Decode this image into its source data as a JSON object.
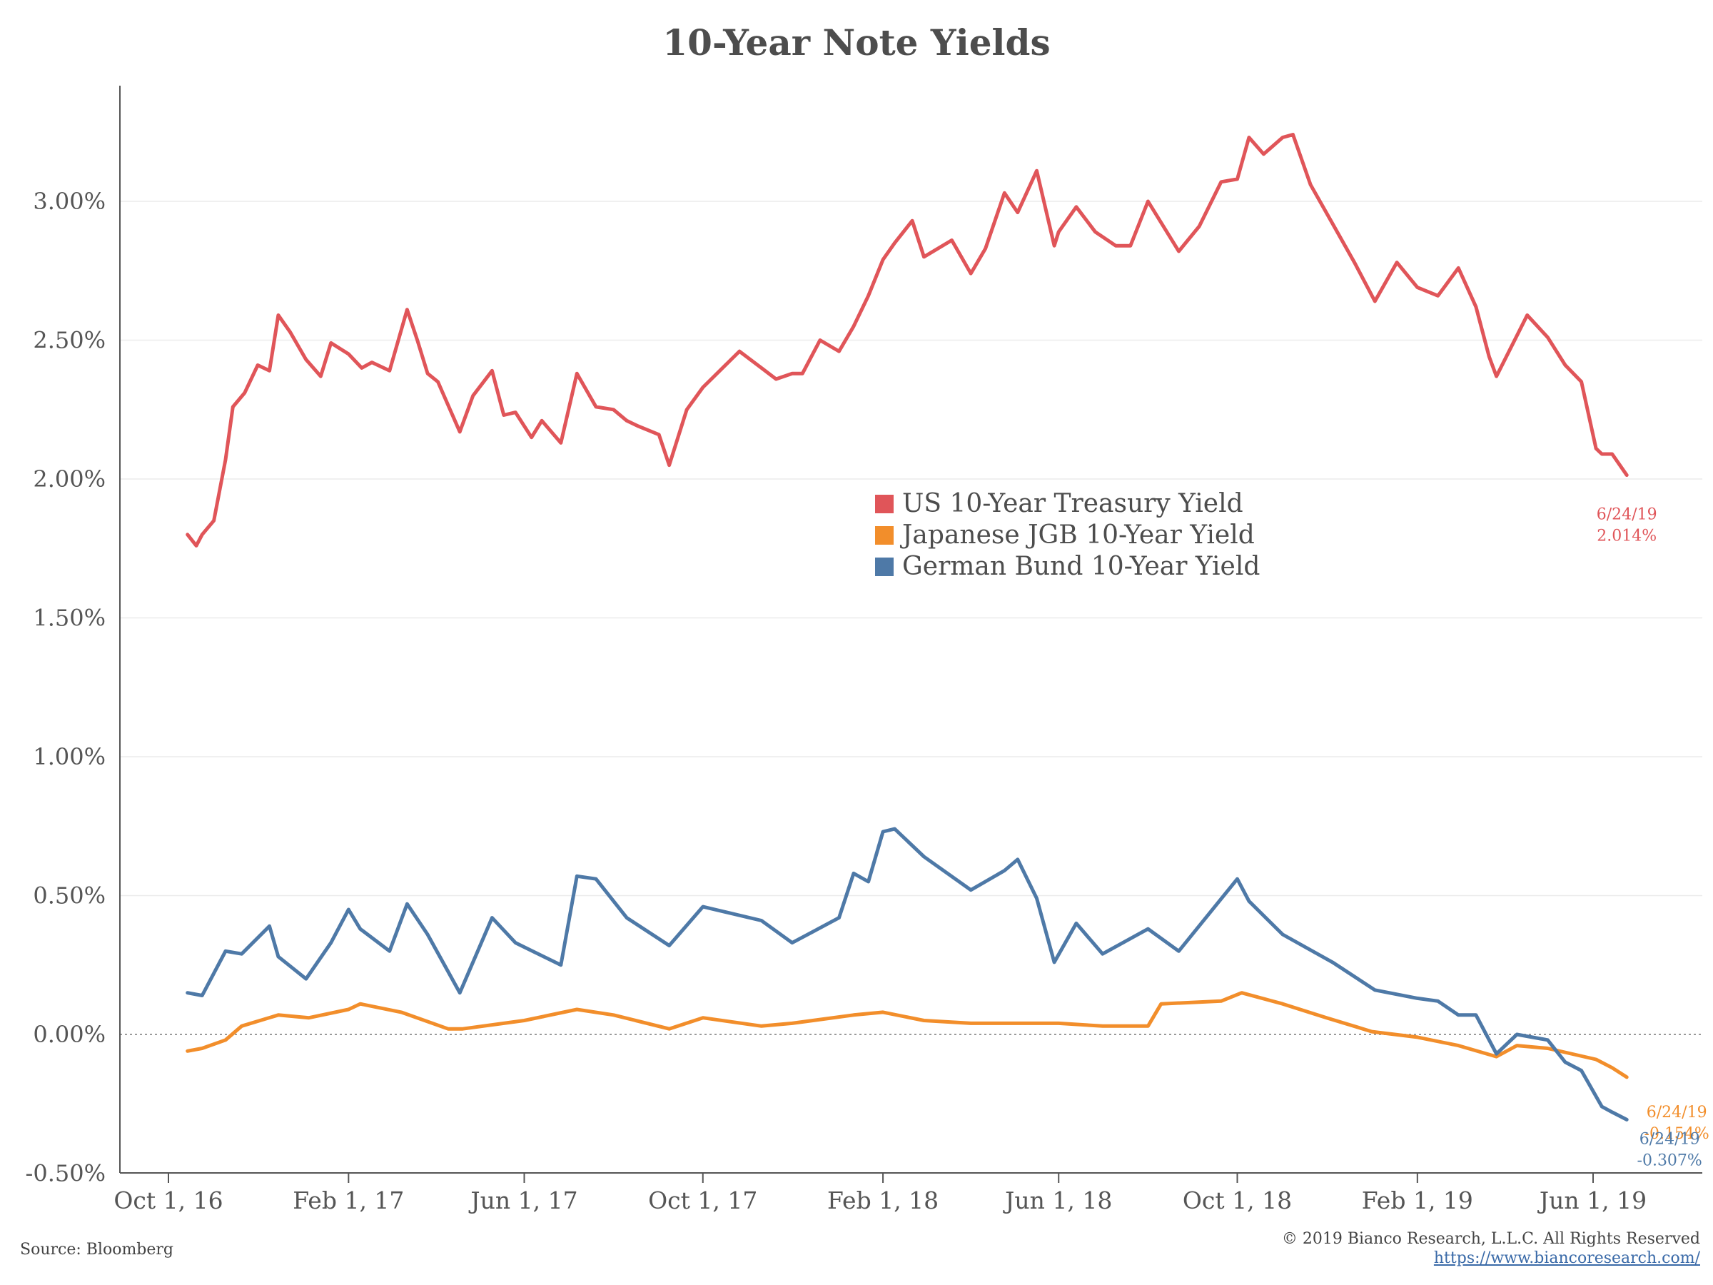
{
  "chart_data": {
    "type": "line",
    "title": "10-Year Note Yields",
    "xlabel": "",
    "ylabel": "",
    "ylim": [
      -0.55,
      3.55
    ],
    "yticks": [
      "3.00%",
      "2.50%",
      "2.00%",
      "1.50%",
      "1.00%",
      "0.50%",
      "0.00%",
      "-0.50%"
    ],
    "ytick_values": [
      3.0,
      2.5,
      2.0,
      1.5,
      1.0,
      0.5,
      0.0,
      -0.5
    ],
    "xticks": [
      "Oct 1, 16",
      "Feb 1, 17",
      "Jun 1, 17",
      "Oct 1, 17",
      "Feb 1, 18",
      "Jun 1, 18",
      "Oct 1, 18",
      "Feb 1, 19",
      "Jun 1, 19"
    ],
    "xtick_dates": [
      "2016-10-01",
      "2017-02-01",
      "2017-06-01",
      "2017-10-01",
      "2018-02-01",
      "2018-06-01",
      "2018-10-01",
      "2019-02-01",
      "2019-06-01"
    ],
    "grid": "horizontal",
    "legend_position": "center",
    "series": [
      {
        "name": "US 10-Year Treasury Yield",
        "color": "#e05559",
        "end_label_date": "6/24/19",
        "end_label_value": "2.014%",
        "x": [
          "2016-10-14",
          "2016-10-20",
          "2016-10-24",
          "2016-11-01",
          "2016-11-09",
          "2016-11-14",
          "2016-11-22",
          "2016-12-01",
          "2016-12-09",
          "2016-12-15",
          "2016-12-23",
          "2017-01-03",
          "2017-01-13",
          "2017-01-20",
          "2017-02-01",
          "2017-02-10",
          "2017-02-17",
          "2017-03-01",
          "2017-03-13",
          "2017-03-20",
          "2017-03-27",
          "2017-04-03",
          "2017-04-18",
          "2017-04-27",
          "2017-05-10",
          "2017-05-18",
          "2017-05-26",
          "2017-06-06",
          "2017-06-13",
          "2017-06-26",
          "2017-07-07",
          "2017-07-20",
          "2017-08-01",
          "2017-08-10",
          "2017-08-18",
          "2017-09-01",
          "2017-09-08",
          "2017-09-20",
          "2017-10-01",
          "2017-10-26",
          "2017-11-10",
          "2017-11-20",
          "2017-12-01",
          "2017-12-08",
          "2017-12-20",
          "2018-01-02",
          "2018-01-12",
          "2018-01-22",
          "2018-02-01",
          "2018-02-09",
          "2018-02-21",
          "2018-03-01",
          "2018-03-20",
          "2018-04-02",
          "2018-04-12",
          "2018-04-25",
          "2018-05-04",
          "2018-05-17",
          "2018-05-29",
          "2018-06-01",
          "2018-06-13",
          "2018-06-26",
          "2018-07-10",
          "2018-07-20",
          "2018-08-01",
          "2018-08-22",
          "2018-09-05",
          "2018-09-20",
          "2018-10-01",
          "2018-10-09",
          "2018-10-19",
          "2018-11-01",
          "2018-11-08",
          "2018-11-20",
          "2018-12-05",
          "2018-12-20",
          "2019-01-03",
          "2019-01-18",
          "2019-02-01",
          "2019-02-15",
          "2019-03-01",
          "2019-03-13",
          "2019-03-22",
          "2019-03-27",
          "2019-04-17",
          "2019-05-01",
          "2019-05-13",
          "2019-05-24",
          "2019-06-03",
          "2019-06-07",
          "2019-06-14",
          "2019-06-24"
        ],
        "values": [
          1.8,
          1.76,
          1.8,
          1.85,
          2.07,
          2.26,
          2.31,
          2.41,
          2.39,
          2.59,
          2.53,
          2.43,
          2.37,
          2.49,
          2.45,
          2.4,
          2.42,
          2.39,
          2.61,
          2.5,
          2.38,
          2.35,
          2.17,
          2.3,
          2.39,
          2.23,
          2.24,
          2.15,
          2.21,
          2.13,
          2.38,
          2.26,
          2.25,
          2.21,
          2.19,
          2.16,
          2.05,
          2.25,
          2.33,
          2.46,
          2.4,
          2.36,
          2.38,
          2.38,
          2.5,
          2.46,
          2.55,
          2.66,
          2.79,
          2.85,
          2.93,
          2.8,
          2.86,
          2.74,
          2.83,
          3.03,
          2.96,
          3.11,
          2.84,
          2.89,
          2.98,
          2.89,
          2.84,
          2.84,
          3.0,
          2.82,
          2.91,
          3.07,
          3.08,
          3.23,
          3.17,
          3.23,
          3.24,
          3.06,
          2.92,
          2.78,
          2.64,
          2.78,
          2.69,
          2.66,
          2.76,
          2.62,
          2.44,
          2.37,
          2.59,
          2.51,
          2.41,
          2.35,
          2.11,
          2.09,
          2.09,
          2.014
        ]
      },
      {
        "name": "Japanese JGB 10-Year Yield",
        "color": "#f28e2b",
        "end_label_date": "6/24/19",
        "end_label_value": "-0.154%",
        "x": [
          "2016-10-14",
          "2016-10-24",
          "2016-11-09",
          "2016-11-20",
          "2016-12-15",
          "2017-01-05",
          "2017-02-01",
          "2017-02-09",
          "2017-03-09",
          "2017-04-10",
          "2017-04-20",
          "2017-06-01",
          "2017-07-07",
          "2017-08-01",
          "2017-09-08",
          "2017-10-01",
          "2017-11-10",
          "2017-12-01",
          "2018-01-12",
          "2018-02-01",
          "2018-03-01",
          "2018-04-02",
          "2018-05-01",
          "2018-06-01",
          "2018-07-01",
          "2018-08-01",
          "2018-08-10",
          "2018-09-20",
          "2018-10-04",
          "2018-11-01",
          "2018-12-01",
          "2019-01-01",
          "2019-02-01",
          "2019-03-01",
          "2019-03-27",
          "2019-04-10",
          "2019-05-01",
          "2019-06-03",
          "2019-06-14",
          "2019-06-24"
        ],
        "values": [
          -0.06,
          -0.05,
          -0.02,
          0.03,
          0.07,
          0.06,
          0.09,
          0.11,
          0.08,
          0.02,
          0.02,
          0.05,
          0.09,
          0.07,
          0.02,
          0.06,
          0.03,
          0.04,
          0.07,
          0.08,
          0.05,
          0.04,
          0.04,
          0.04,
          0.03,
          0.03,
          0.11,
          0.12,
          0.15,
          0.11,
          0.06,
          0.01,
          -0.01,
          -0.04,
          -0.08,
          -0.04,
          -0.05,
          -0.09,
          -0.12,
          -0.154
        ]
      },
      {
        "name": "German Bund 10-Year Yield",
        "color": "#4e79a7",
        "end_label_date": "6/24/19",
        "end_label_value": "-0.307%",
        "x": [
          "2016-10-14",
          "2016-10-24",
          "2016-11-09",
          "2016-11-20",
          "2016-12-09",
          "2016-12-15",
          "2017-01-03",
          "2017-01-20",
          "2017-02-01",
          "2017-02-09",
          "2017-03-01",
          "2017-03-13",
          "2017-03-27",
          "2017-04-18",
          "2017-05-10",
          "2017-05-26",
          "2017-06-26",
          "2017-07-07",
          "2017-07-20",
          "2017-08-10",
          "2017-09-08",
          "2017-10-01",
          "2017-11-10",
          "2017-12-01",
          "2018-01-02",
          "2018-01-12",
          "2018-01-22",
          "2018-02-01",
          "2018-02-09",
          "2018-03-01",
          "2018-04-02",
          "2018-04-25",
          "2018-05-04",
          "2018-05-17",
          "2018-05-29",
          "2018-06-13",
          "2018-07-01",
          "2018-08-01",
          "2018-08-22",
          "2018-10-01",
          "2018-10-09",
          "2018-11-01",
          "2018-12-05",
          "2019-01-03",
          "2019-02-01",
          "2019-02-15",
          "2019-03-01",
          "2019-03-13",
          "2019-03-27",
          "2019-04-10",
          "2019-05-01",
          "2019-05-13",
          "2019-05-24",
          "2019-06-07",
          "2019-06-14",
          "2019-06-24"
        ],
        "values": [
          0.15,
          0.14,
          0.3,
          0.29,
          0.39,
          0.28,
          0.2,
          0.33,
          0.45,
          0.38,
          0.3,
          0.47,
          0.36,
          0.15,
          0.42,
          0.33,
          0.25,
          0.57,
          0.56,
          0.42,
          0.32,
          0.46,
          0.41,
          0.33,
          0.42,
          0.58,
          0.55,
          0.73,
          0.74,
          0.64,
          0.52,
          0.59,
          0.63,
          0.49,
          0.26,
          0.4,
          0.29,
          0.38,
          0.3,
          0.56,
          0.48,
          0.36,
          0.26,
          0.16,
          0.13,
          0.12,
          0.07,
          0.07,
          -0.07,
          0.0,
          -0.02,
          -0.1,
          -0.13,
          -0.26,
          -0.28,
          -0.307
        ]
      }
    ]
  },
  "footer": {
    "source": "Source: Bloomberg",
    "copyright": "© 2019 Bianco Research, L.L.C. All Rights Reserved",
    "website": "https://www.biancoresearch.com/"
  }
}
